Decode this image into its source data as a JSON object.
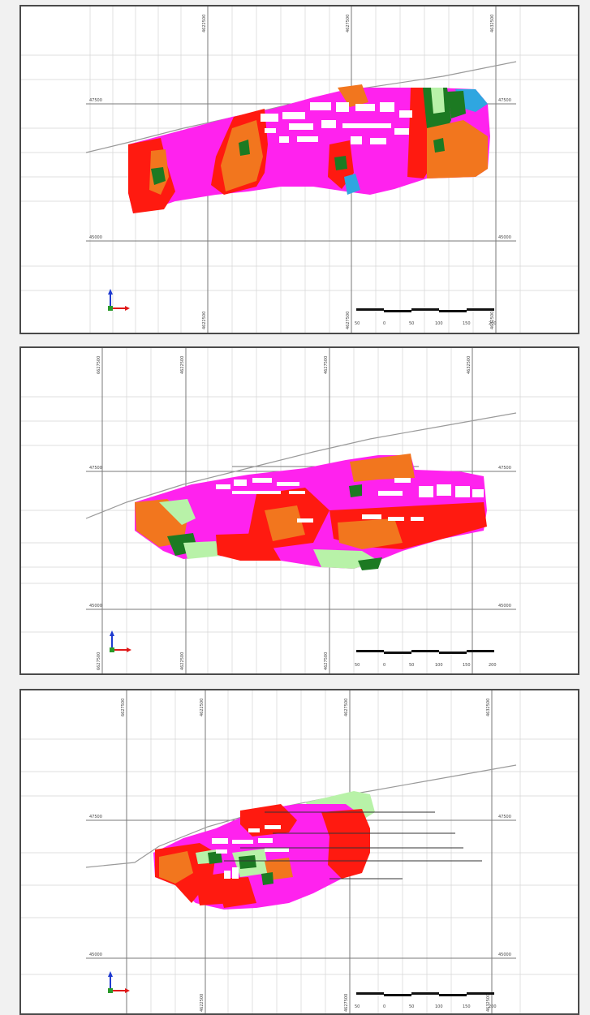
{
  "palette": {
    "magenta": "#ff22ee",
    "red": "#ff1a10",
    "orange": "#f2761e",
    "dark_green": "#1c7a22",
    "light_green": "#b8f2a8",
    "blue": "#2fa6e0",
    "grid": "#c8c8c8",
    "grid_major": "#7a7a7a",
    "terrain": "#9a9a9a"
  },
  "icons": {
    "axis_triad": "xyz-axis-triad-icon"
  },
  "panels": [
    {
      "id": "section-1",
      "grid_labels": {
        "top": [
          "4622500",
          "4627500",
          "4632500"
        ],
        "bottom": [
          "4622500",
          "4627500",
          "4632500"
        ],
        "left": [
          "47500",
          "45000"
        ],
        "right": [
          "47500",
          "45000"
        ]
      },
      "scale_bar": {
        "ticks": [
          "50",
          "0",
          "50",
          "100",
          "150",
          "200"
        ]
      }
    },
    {
      "id": "section-2",
      "grid_labels": {
        "top": [
          "6627500",
          "4622500",
          "4627500",
          "4632500"
        ],
        "bottom": [
          "6627500",
          "4622500",
          "4627500"
        ],
        "left": [
          "47500",
          "45000"
        ],
        "right": [
          "47500",
          "45000"
        ]
      },
      "scale_bar": {
        "ticks": [
          "50",
          "0",
          "50",
          "100",
          "150",
          "200"
        ]
      }
    },
    {
      "id": "section-3",
      "grid_labels": {
        "top": [
          "6627500",
          "4622500",
          "4627500",
          "4632500"
        ],
        "bottom": [
          "4622500",
          "4627500",
          "4632500"
        ],
        "left": [
          "47500",
          "45000"
        ],
        "right": [
          "47500",
          "45000"
        ]
      },
      "scale_bar": {
        "ticks": [
          "50",
          "0",
          "50",
          "100",
          "150",
          "200"
        ]
      }
    }
  ]
}
